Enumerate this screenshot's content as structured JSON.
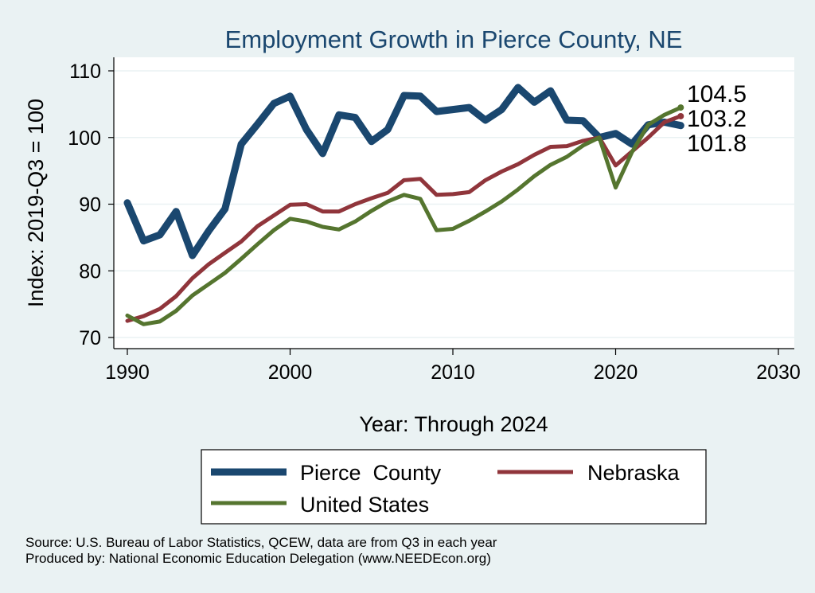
{
  "chart_data": {
    "type": "line",
    "title": "Employment Growth in Pierce County, NE",
    "xlabel": "Year: Through 2024",
    "ylabel": "Index: 2019-Q3 = 100",
    "xlim": [
      1990,
      2030
    ],
    "ylim": [
      70,
      110
    ],
    "xticks": [
      1990,
      2000,
      2010,
      2020,
      2030
    ],
    "yticks": [
      70,
      80,
      90,
      100,
      110
    ],
    "grid": "horizontal",
    "legend_position": "bottom",
    "x": [
      1990,
      1991,
      1992,
      1993,
      1994,
      1995,
      1996,
      1997,
      1998,
      1999,
      2000,
      2001,
      2002,
      2003,
      2004,
      2005,
      2006,
      2007,
      2008,
      2009,
      2010,
      2011,
      2012,
      2013,
      2014,
      2015,
      2016,
      2017,
      2018,
      2019,
      2020,
      2021,
      2022,
      2023,
      2024
    ],
    "series": [
      {
        "name": "Pierce  County",
        "color": "#1a476f",
        "stroke": 9,
        "values": [
          90.2,
          84.5,
          85.4,
          88.9,
          82.3,
          86.0,
          89.3,
          99.0,
          102.0,
          105.1,
          106.2,
          101.2,
          97.6,
          103.4,
          103.0,
          99.4,
          101.2,
          106.3,
          106.2,
          103.9,
          104.2,
          104.5,
          102.6,
          104.2,
          107.5,
          105.3,
          107.0,
          102.6,
          102.5,
          100.0,
          100.6,
          99.0,
          101.9,
          102.3,
          101.8
        ],
        "end_label": "101.8"
      },
      {
        "name": "Nebraska",
        "color": "#90353b",
        "stroke": 5,
        "values": [
          72.5,
          73.2,
          74.3,
          76.2,
          78.9,
          81.0,
          82.7,
          84.4,
          86.7,
          88.3,
          89.9,
          90.0,
          88.9,
          88.9,
          90.0,
          90.9,
          91.7,
          93.6,
          93.8,
          91.4,
          91.5,
          91.8,
          93.6,
          94.9,
          96.0,
          97.4,
          98.6,
          98.7,
          99.5,
          100.0,
          95.8,
          97.9,
          100.0,
          102.3,
          103.2
        ],
        "end_label": "103.2"
      },
      {
        "name": "United States",
        "color": "#55752f",
        "stroke": 5,
        "values": [
          73.3,
          72.0,
          72.4,
          74.0,
          76.3,
          78.0,
          79.7,
          81.8,
          84.0,
          86.1,
          87.8,
          87.4,
          86.6,
          86.2,
          87.4,
          89.0,
          90.4,
          91.4,
          90.8,
          86.1,
          86.3,
          87.5,
          88.9,
          90.4,
          92.2,
          94.2,
          95.9,
          97.1,
          98.8,
          100.0,
          92.5,
          97.8,
          101.9,
          103.4,
          104.5
        ],
        "end_label": "104.5"
      }
    ]
  },
  "footer": {
    "source": "Source: U.S. Bureau of Labor Statistics, QCEW, data are from Q3 in each year",
    "produced": "Produced by: National Economic Education Delegation (www.NEEDEcon.org)"
  }
}
